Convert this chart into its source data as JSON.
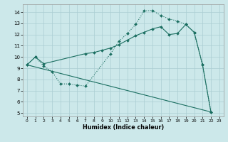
{
  "xlabel": "Humidex (Indice chaleur)",
  "bg_color": "#cce8ea",
  "grid_color": "#aacdd2",
  "line_color": "#1a6e60",
  "xlim": [
    -0.5,
    23.5
  ],
  "ylim": [
    4.7,
    14.7
  ],
  "xticks": [
    0,
    1,
    2,
    3,
    4,
    5,
    6,
    7,
    8,
    9,
    10,
    11,
    12,
    13,
    14,
    15,
    16,
    17,
    18,
    19,
    20,
    21,
    22,
    23
  ],
  "yticks": [
    5,
    6,
    7,
    8,
    9,
    10,
    11,
    12,
    13,
    14
  ],
  "curve1_x": [
    0,
    1,
    2,
    3,
    4,
    5,
    6,
    7,
    10,
    11,
    12,
    13,
    14,
    15,
    16,
    17,
    18,
    19,
    20,
    21,
    22
  ],
  "curve1_y": [
    9.3,
    10.0,
    9.2,
    8.7,
    7.6,
    7.6,
    7.5,
    7.4,
    10.3,
    11.4,
    12.1,
    12.9,
    14.1,
    14.15,
    13.7,
    13.4,
    13.2,
    12.9,
    12.2,
    9.3,
    5.1
  ],
  "curve2_x": [
    0,
    1,
    2,
    7,
    8,
    9,
    10,
    11,
    12,
    13,
    14,
    15,
    16,
    17,
    18,
    19,
    20,
    21,
    22
  ],
  "curve2_y": [
    9.3,
    10.0,
    9.4,
    10.3,
    10.4,
    10.6,
    10.8,
    11.1,
    11.5,
    11.9,
    12.2,
    12.5,
    12.7,
    12.0,
    12.1,
    12.9,
    12.2,
    9.3,
    5.1
  ],
  "line3_x": [
    0,
    22
  ],
  "line3_y": [
    9.3,
    5.1
  ]
}
